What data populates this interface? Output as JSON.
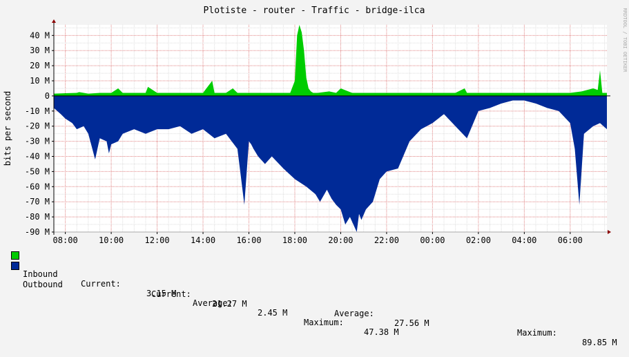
{
  "branding": "RRDTOOL / TOBI OETIKER",
  "chart_data": {
    "type": "area",
    "title": "Plotiste - router - Traffic - bridge-ilca",
    "ylabel": "bits per second",
    "ylim": [
      -90000000,
      47000000
    ],
    "y_ticks": [
      {
        "v": 40000000,
        "label": "40 M"
      },
      {
        "v": 30000000,
        "label": "30 M"
      },
      {
        "v": 20000000,
        "label": "20 M"
      },
      {
        "v": 10000000,
        "label": "10 M"
      },
      {
        "v": 0,
        "label": "0"
      },
      {
        "v": -10000000,
        "label": "-10 M"
      },
      {
        "v": -20000000,
        "label": "-20 M"
      },
      {
        "v": -30000000,
        "label": "-30 M"
      },
      {
        "v": -40000000,
        "label": "-40 M"
      },
      {
        "v": -50000000,
        "label": "-50 M"
      },
      {
        "v": -60000000,
        "label": "-60 M"
      },
      {
        "v": -70000000,
        "label": "-70 M"
      },
      {
        "v": -80000000,
        "label": "-80 M"
      },
      {
        "v": -90000000,
        "label": "-90 M"
      }
    ],
    "x_unit": "hours since 08:00",
    "xlim": [
      -0.5,
      23.6
    ],
    "x_ticks": [
      {
        "v": 0,
        "label": "08:00"
      },
      {
        "v": 2,
        "label": "10:00"
      },
      {
        "v": 4,
        "label": "12:00"
      },
      {
        "v": 6,
        "label": "14:00"
      },
      {
        "v": 8,
        "label": "16:00"
      },
      {
        "v": 10,
        "label": "18:00"
      },
      {
        "v": 12,
        "label": "20:00"
      },
      {
        "v": 14,
        "label": "22:00"
      },
      {
        "v": 16,
        "label": "00:00"
      },
      {
        "v": 18,
        "label": "02:00"
      },
      {
        "v": 20,
        "label": "04:00"
      },
      {
        "v": 22,
        "label": "06:00"
      }
    ],
    "series": [
      {
        "name": "Inbound",
        "color": "#00cc00",
        "x": [
          -0.5,
          0,
          0.5,
          0.6,
          1,
          1.5,
          2,
          2.3,
          2.5,
          3,
          3.5,
          3.6,
          4,
          4.5,
          4.8,
          5,
          5.5,
          6,
          6.4,
          6.5,
          7,
          7.3,
          7.5,
          8,
          8.5,
          9,
          9.5,
          9.8,
          10,
          10.1,
          10.2,
          10.3,
          10.4,
          10.5,
          10.6,
          10.7,
          10.8,
          11,
          11.5,
          11.8,
          12,
          12.5,
          13,
          14,
          15,
          16,
          17,
          17.4,
          17.5,
          18,
          19,
          20,
          21,
          22,
          22.5,
          23,
          23.2,
          23.3,
          23.4,
          23.6
        ],
        "y": [
          1.5,
          1.8,
          2,
          2.5,
          1.5,
          2,
          2,
          5,
          2,
          2,
          2,
          6,
          2,
          2,
          2,
          2,
          2,
          2,
          10,
          2,
          2,
          5,
          2,
          2,
          2,
          2,
          2,
          2,
          10,
          40,
          47,
          42,
          30,
          12,
          5,
          3,
          2,
          2,
          3,
          2,
          5,
          2,
          2,
          2,
          2,
          2,
          2,
          5,
          2,
          2,
          2,
          2,
          2,
          2,
          3,
          5,
          4,
          17,
          2,
          2
        ],
        "current": "3.15 M",
        "average": "2.45 M",
        "maximum": "47.38 M"
      },
      {
        "name": "Outbound",
        "color": "#002a97",
        "x": [
          -0.5,
          -0.2,
          0,
          0.3,
          0.5,
          0.8,
          1,
          1.3,
          1.5,
          1.8,
          1.9,
          2,
          2.3,
          2.5,
          3,
          3.5,
          4,
          4.5,
          5,
          5.5,
          6,
          6.5,
          7,
          7.5,
          7.8,
          8,
          8.1,
          8.2,
          8.4,
          8.7,
          9,
          9.5,
          10,
          10.5,
          10.9,
          11.1,
          11.4,
          11.6,
          11.8,
          12,
          12.2,
          12.4,
          12.7,
          12.8,
          12.9,
          13.1,
          13.4,
          13.7,
          14,
          14.5,
          15,
          15.5,
          16,
          16.5,
          17,
          17.5,
          18,
          18.5,
          19,
          19.5,
          20,
          20.5,
          21,
          21.5,
          22,
          22.2,
          22.4,
          22.6,
          23,
          23.3,
          23.6
        ],
        "y": [
          -8,
          -12,
          -15,
          -18,
          -22,
          -20,
          -25,
          -42,
          -28,
          -30,
          -38,
          -32,
          -30,
          -25,
          -22,
          -25,
          -22,
          -22,
          -20,
          -25,
          -22,
          -28,
          -25,
          -35,
          -72,
          -30,
          -32,
          -35,
          -40,
          -45,
          -40,
          -48,
          -55,
          -60,
          -65,
          -70,
          -62,
          -68,
          -72,
          -75,
          -85,
          -80,
          -90,
          -78,
          -82,
          -75,
          -70,
          -55,
          -50,
          -48,
          -30,
          -22,
          -18,
          -12,
          -20,
          -28,
          -10,
          -8,
          -5,
          -3,
          -3,
          -5,
          -8,
          -10,
          -18,
          -35,
          -72,
          -25,
          -20,
          -18,
          -22
        ],
        "current": "21.27 M",
        "average": "27.56 M",
        "maximum": "89.85 M"
      }
    ],
    "legend": {
      "current_label": "Current:",
      "average_label": "Average:",
      "maximum_label": "Maximum:"
    }
  }
}
